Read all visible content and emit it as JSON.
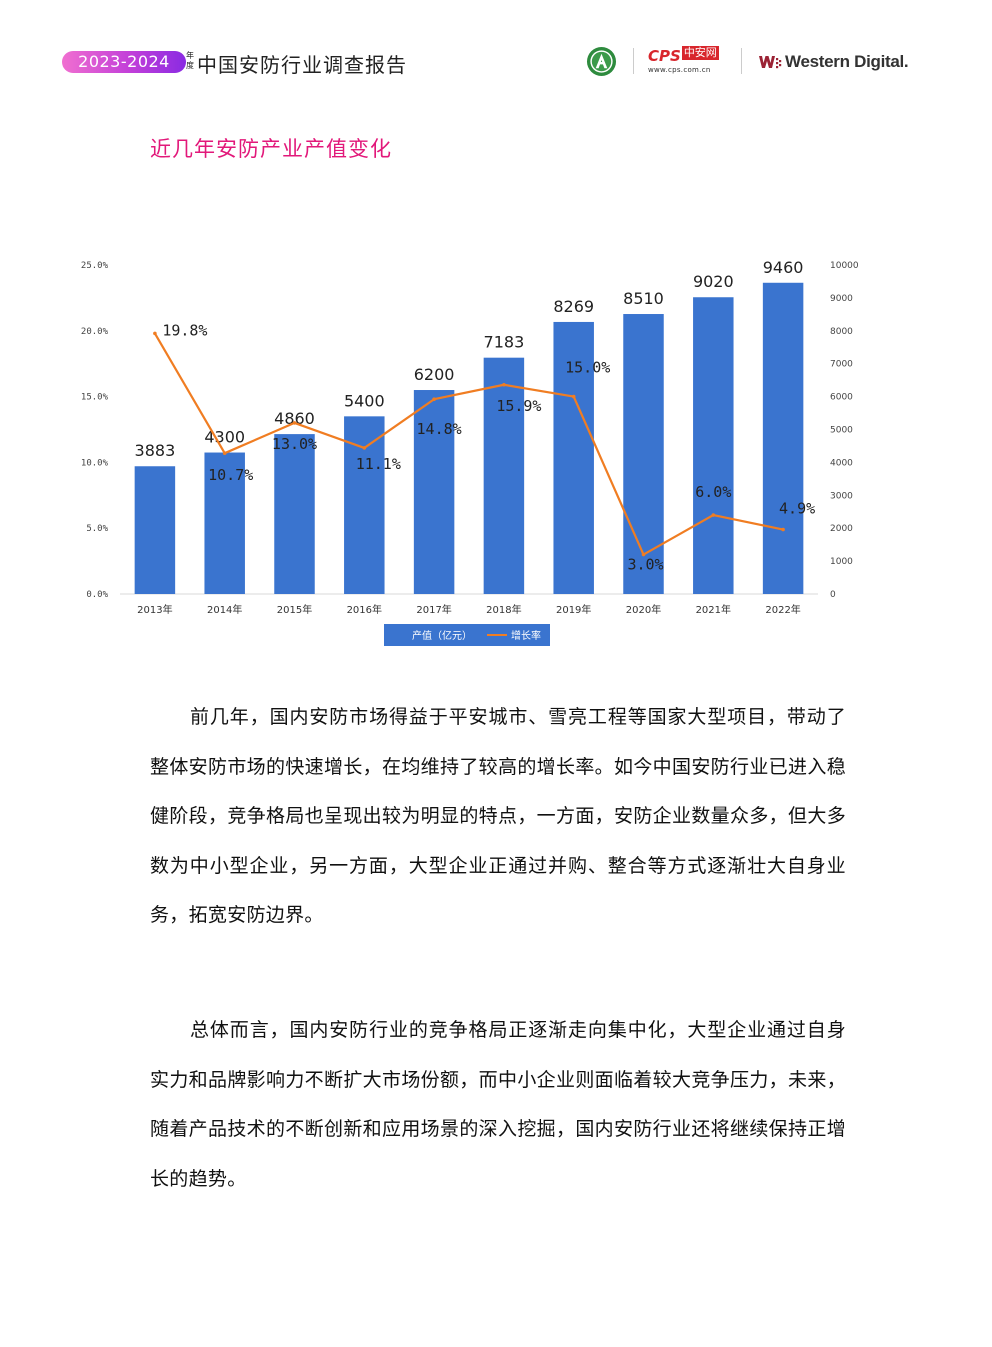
{
  "header": {
    "years": "2023-2024",
    "year_note": "年度",
    "report_title": "中国安防行业调查报告",
    "cps_brand": "CPS",
    "cps_cn": "中安网",
    "cps_url": "www.cps.com.cn",
    "wd_brand": "Western Digital."
  },
  "section_title": "近几年安防产业产值变化",
  "chart_data": {
    "type": "bar",
    "categories": [
      "2013年",
      "2014年",
      "2015年",
      "2016年",
      "2017年",
      "2018年",
      "2019年",
      "2020年",
      "2021年",
      "2022年"
    ],
    "series": [
      {
        "name": "产值（亿元）",
        "type": "bar",
        "axis": "right",
        "values": [
          3883,
          4300,
          4860,
          5400,
          6200,
          7183,
          8269,
          8510,
          9020,
          9460
        ],
        "labels": [
          "3883",
          "4300",
          "4860",
          "5400",
          "6200",
          "7183",
          "8269",
          "8510",
          "9020",
          "9460"
        ]
      },
      {
        "name": "增长率",
        "type": "line",
        "axis": "left",
        "values": [
          19.8,
          10.7,
          13.0,
          11.1,
          14.8,
          15.9,
          15.0,
          3.0,
          6.0,
          4.9
        ],
        "labels": [
          "19.8%",
          "10.7%",
          "13.0%",
          "11.1%",
          "14.8%",
          "15.9%",
          "15.0%",
          "3.0%",
          "6.0%",
          "4.9%"
        ]
      }
    ],
    "left_axis": {
      "ylim": [
        0,
        25
      ],
      "ticks": [
        "0.0%",
        "5.0%",
        "10.0%",
        "15.0%",
        "20.0%",
        "25.0%"
      ]
    },
    "right_axis": {
      "ylim": [
        0,
        10000
      ],
      "ticks": [
        "0",
        "1000",
        "2000",
        "3000",
        "4000",
        "5000",
        "6000",
        "7000",
        "8000",
        "9000",
        "10000"
      ]
    },
    "legend_position": "bottom",
    "grid": false,
    "colors": {
      "bar": "#3a74cf",
      "line": "#f07d22",
      "legend_bg": "#3a74cf",
      "legend_text": "#ffffff"
    }
  },
  "paragraphs": [
    "前几年，国内安防市场得益于平安城市、雪亮工程等国家大型项目，带动了整体安防市场的快速增长，在均维持了较高的增长率。如今中国安防行业已进入稳健阶段，竞争格局也呈现出较为明显的特点，一方面，安防企业数量众多，但大多数为中小型企业，另一方面，大型企业正通过并购、整合等方式逐渐壮大自身业务，拓宽安防边界。",
    "总体而言，国内安防行业的竞争格局正逐渐走向集中化，大型企业通过自身实力和品牌影响力不断扩大市场份额，而中小企业则面临着较大竞争压力，未来，随着产品技术的不断创新和应用场景的深入挖掘，国内安防行业还将继续保持正增长的趋势。"
  ]
}
